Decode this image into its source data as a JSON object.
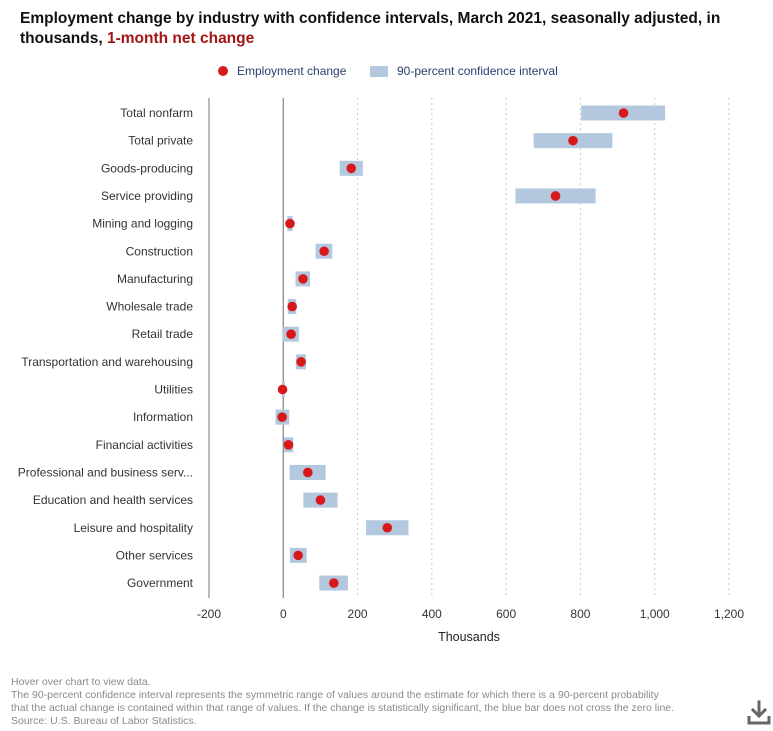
{
  "title": {
    "main": "Employment change by industry with confidence intervals, March 2021, seasonally adjusted, in thousands,",
    "highlight": "1-month net change"
  },
  "legend": {
    "point_label": "Employment change",
    "interval_label": "90-percent confidence interval"
  },
  "colors": {
    "point": "#d7191c",
    "interval": "#b3c8df",
    "title_accent": "#a31515",
    "legend_text": "#2c3e70"
  },
  "chart_data": {
    "type": "scatter",
    "orientation": "horizontal",
    "xlabel": "Thousands",
    "xlim": [
      -200,
      1200
    ],
    "xticks": [
      -200,
      0,
      200,
      400,
      600,
      800,
      1000,
      1200
    ],
    "xtick_labels": [
      "-200",
      "0",
      "200",
      "400",
      "600",
      "800",
      "1,000",
      "1,200"
    ],
    "grid": "vertical dotted",
    "zero_line": true,
    "legend_position": "top-center",
    "categories": [
      "Total nonfarm",
      "Total private",
      "Goods-producing",
      "Service providing",
      "Mining and logging",
      "Construction",
      "Manufacturing",
      "Wholesale trade",
      "Retail trade",
      "Transportation and warehousing",
      "Utilities",
      "Information",
      "Financial activities",
      "Professional and business serv...",
      "Education and health services",
      "Leisure and hospitality",
      "Other services",
      "Government"
    ],
    "series": [
      {
        "name": "Employment change",
        "values": [
          916,
          780,
          183,
          733,
          18,
          110,
          53,
          24,
          21,
          48,
          -2,
          -3,
          14,
          66,
          100,
          280,
          40,
          136
        ]
      },
      {
        "name": "90-percent confidence interval",
        "low": [
          802,
          674,
          152,
          625,
          11,
          87,
          33,
          12,
          -1,
          34,
          -4,
          -21,
          2,
          17,
          54,
          223,
          18,
          97
        ],
        "high": [
          1028,
          886,
          214,
          841,
          25,
          132,
          72,
          35,
          42,
          61,
          1,
          16,
          27,
          114,
          146,
          337,
          63,
          174
        ]
      }
    ]
  },
  "footnote": {
    "hover": "Hover over chart to view data.",
    "line1": "The 90-percent confidence interval represents the symmetric range of values around the estimate for which there is a 90-percent probability",
    "line2": "that the actual change is contained within that range of values. If the change is statistically significant, the blue bar does not cross the zero line.",
    "source": "Source: U.S. Bureau of Labor Statistics."
  },
  "download_icon": "download-icon"
}
